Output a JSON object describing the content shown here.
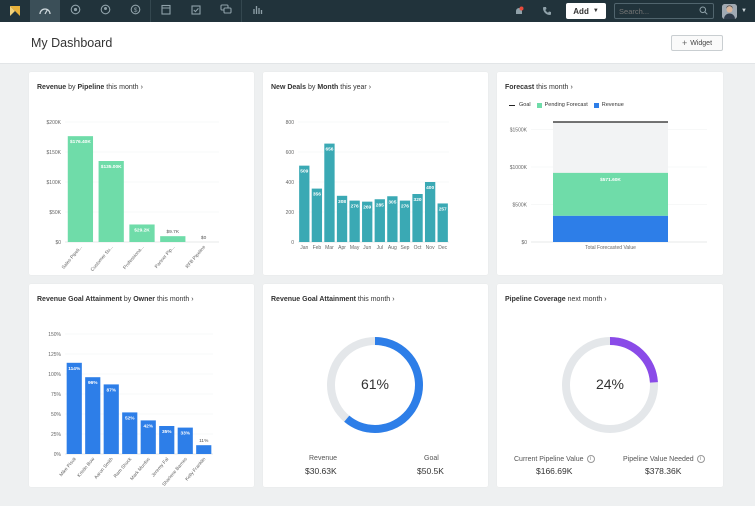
{
  "nav": {
    "items": [
      "dashboard-icon",
      "deals-icon",
      "contacts-icon",
      "revenue-icon",
      "calendar-icon",
      "tasks-icon",
      "messages-icon",
      "reports-icon"
    ],
    "add_label": "Add",
    "search_placeholder": "Search..."
  },
  "header": {
    "title": "My Dashboard",
    "widget_label": "Widget"
  },
  "colors": {
    "green": "#6fdca9",
    "teal": "#3aa9b4",
    "blue": "#2d7ee8",
    "purple": "#8a4be8",
    "nav": "#21333b"
  },
  "cards": {
    "revenue_pipeline": {
      "title_bold": "Revenue",
      "title_mid": " by ",
      "title_bold2": "Pipeline",
      "title_rest": " this month"
    },
    "new_deals": {
      "title_bold": "New Deals",
      "title_mid": " by ",
      "title_bold2": "Month",
      "title_rest": " this year"
    },
    "forecast": {
      "title_bold": "Forecast",
      "title_rest": " this month",
      "legend": [
        "Goal",
        "Pending Forecast",
        "Revenue"
      ]
    },
    "goal_owner": {
      "title_bold": "Revenue Goal Attainment",
      "title_mid": " by ",
      "title_bold2": "Owner",
      "title_rest": " this month"
    },
    "goal_attainment": {
      "title_bold": "Revenue Goal Attainment",
      "title_rest": " this month",
      "percent": "61%",
      "left_label": "Revenue",
      "left_value": "$30.63K",
      "right_label": "Goal",
      "right_value": "$50.5K"
    },
    "pipeline_coverage": {
      "title_bold": "Pipeline Coverage",
      "title_rest": " next month",
      "percent": "24%",
      "left_label": "Current Pipeline Value",
      "left_value": "$166.69K",
      "right_label": "Pipeline Value Needed",
      "right_value": "$378.36K"
    }
  },
  "chart_data": [
    {
      "type": "bar",
      "title": "Revenue by Pipeline this month",
      "categories": [
        "Sales Pipeli...",
        "Customer Su...",
        "Professiona...",
        "Partner Pip...",
        "RFB Pipeline"
      ],
      "values": [
        176400,
        135000,
        29200,
        9700,
        0
      ],
      "data_labels": [
        "$176.40K",
        "$135.00K",
        "$29.2K",
        "$9.7K",
        "$0"
      ],
      "yticks": [
        "$0",
        "$50K",
        "$100K",
        "$150K",
        "$200K"
      ],
      "ylim": [
        0,
        200000
      ]
    },
    {
      "type": "bar",
      "title": "New Deals by Month this year",
      "categories": [
        "Jan",
        "Feb",
        "Mar",
        "Apr",
        "May",
        "Jun",
        "Jul",
        "Aug",
        "Sep",
        "Oct",
        "Nov",
        "Dec"
      ],
      "values": [
        509,
        356,
        656,
        308,
        276,
        269,
        285,
        305,
        276,
        320,
        400,
        257
      ],
      "yticks": [
        "0",
        "200",
        "400",
        "600",
        "800"
      ],
      "ylim": [
        0,
        800
      ]
    },
    {
      "type": "bar",
      "title": "Forecast this month",
      "categories": [
        "Total Forecasted Value"
      ],
      "series": [
        {
          "name": "Revenue",
          "values": [
            350000
          ]
        },
        {
          "name": "Pending Forecast",
          "values": [
            571600
          ]
        }
      ],
      "goal": 1600000,
      "data_labels": [
        "$571.60K"
      ],
      "yticks": [
        "$0",
        "$500K",
        "$1000K",
        "$1500K"
      ],
      "ylim": [
        0,
        1600000
      ]
    },
    {
      "type": "bar",
      "title": "Revenue Goal Attainment by Owner this month",
      "categories": [
        "Mike Pisoli",
        "Kristin Bow",
        "Aaron Smith",
        "Ram Shock",
        "Mark Murdoc",
        "Jeremy Fal",
        "Sharlene Barnes",
        "Kelly Franklin"
      ],
      "values": [
        114,
        96,
        87,
        52,
        42,
        35,
        33,
        11
      ],
      "data_labels": [
        "114%",
        "96%",
        "87%",
        "52%",
        "42%",
        "35%",
        "33%",
        "11%"
      ],
      "yticks": [
        "0%",
        "25%",
        "50%",
        "75%",
        "100%",
        "125%",
        "150%"
      ],
      "ylim": [
        0,
        150
      ]
    },
    {
      "type": "pie",
      "title": "Revenue Goal Attainment this month",
      "values": [
        61,
        39
      ],
      "labels": [
        "Revenue",
        "Goal"
      ]
    },
    {
      "type": "pie",
      "title": "Pipeline Coverage next month",
      "values": [
        24,
        76
      ],
      "labels": [
        "Current Pipeline Value",
        "Pipeline Value Needed"
      ]
    }
  ]
}
